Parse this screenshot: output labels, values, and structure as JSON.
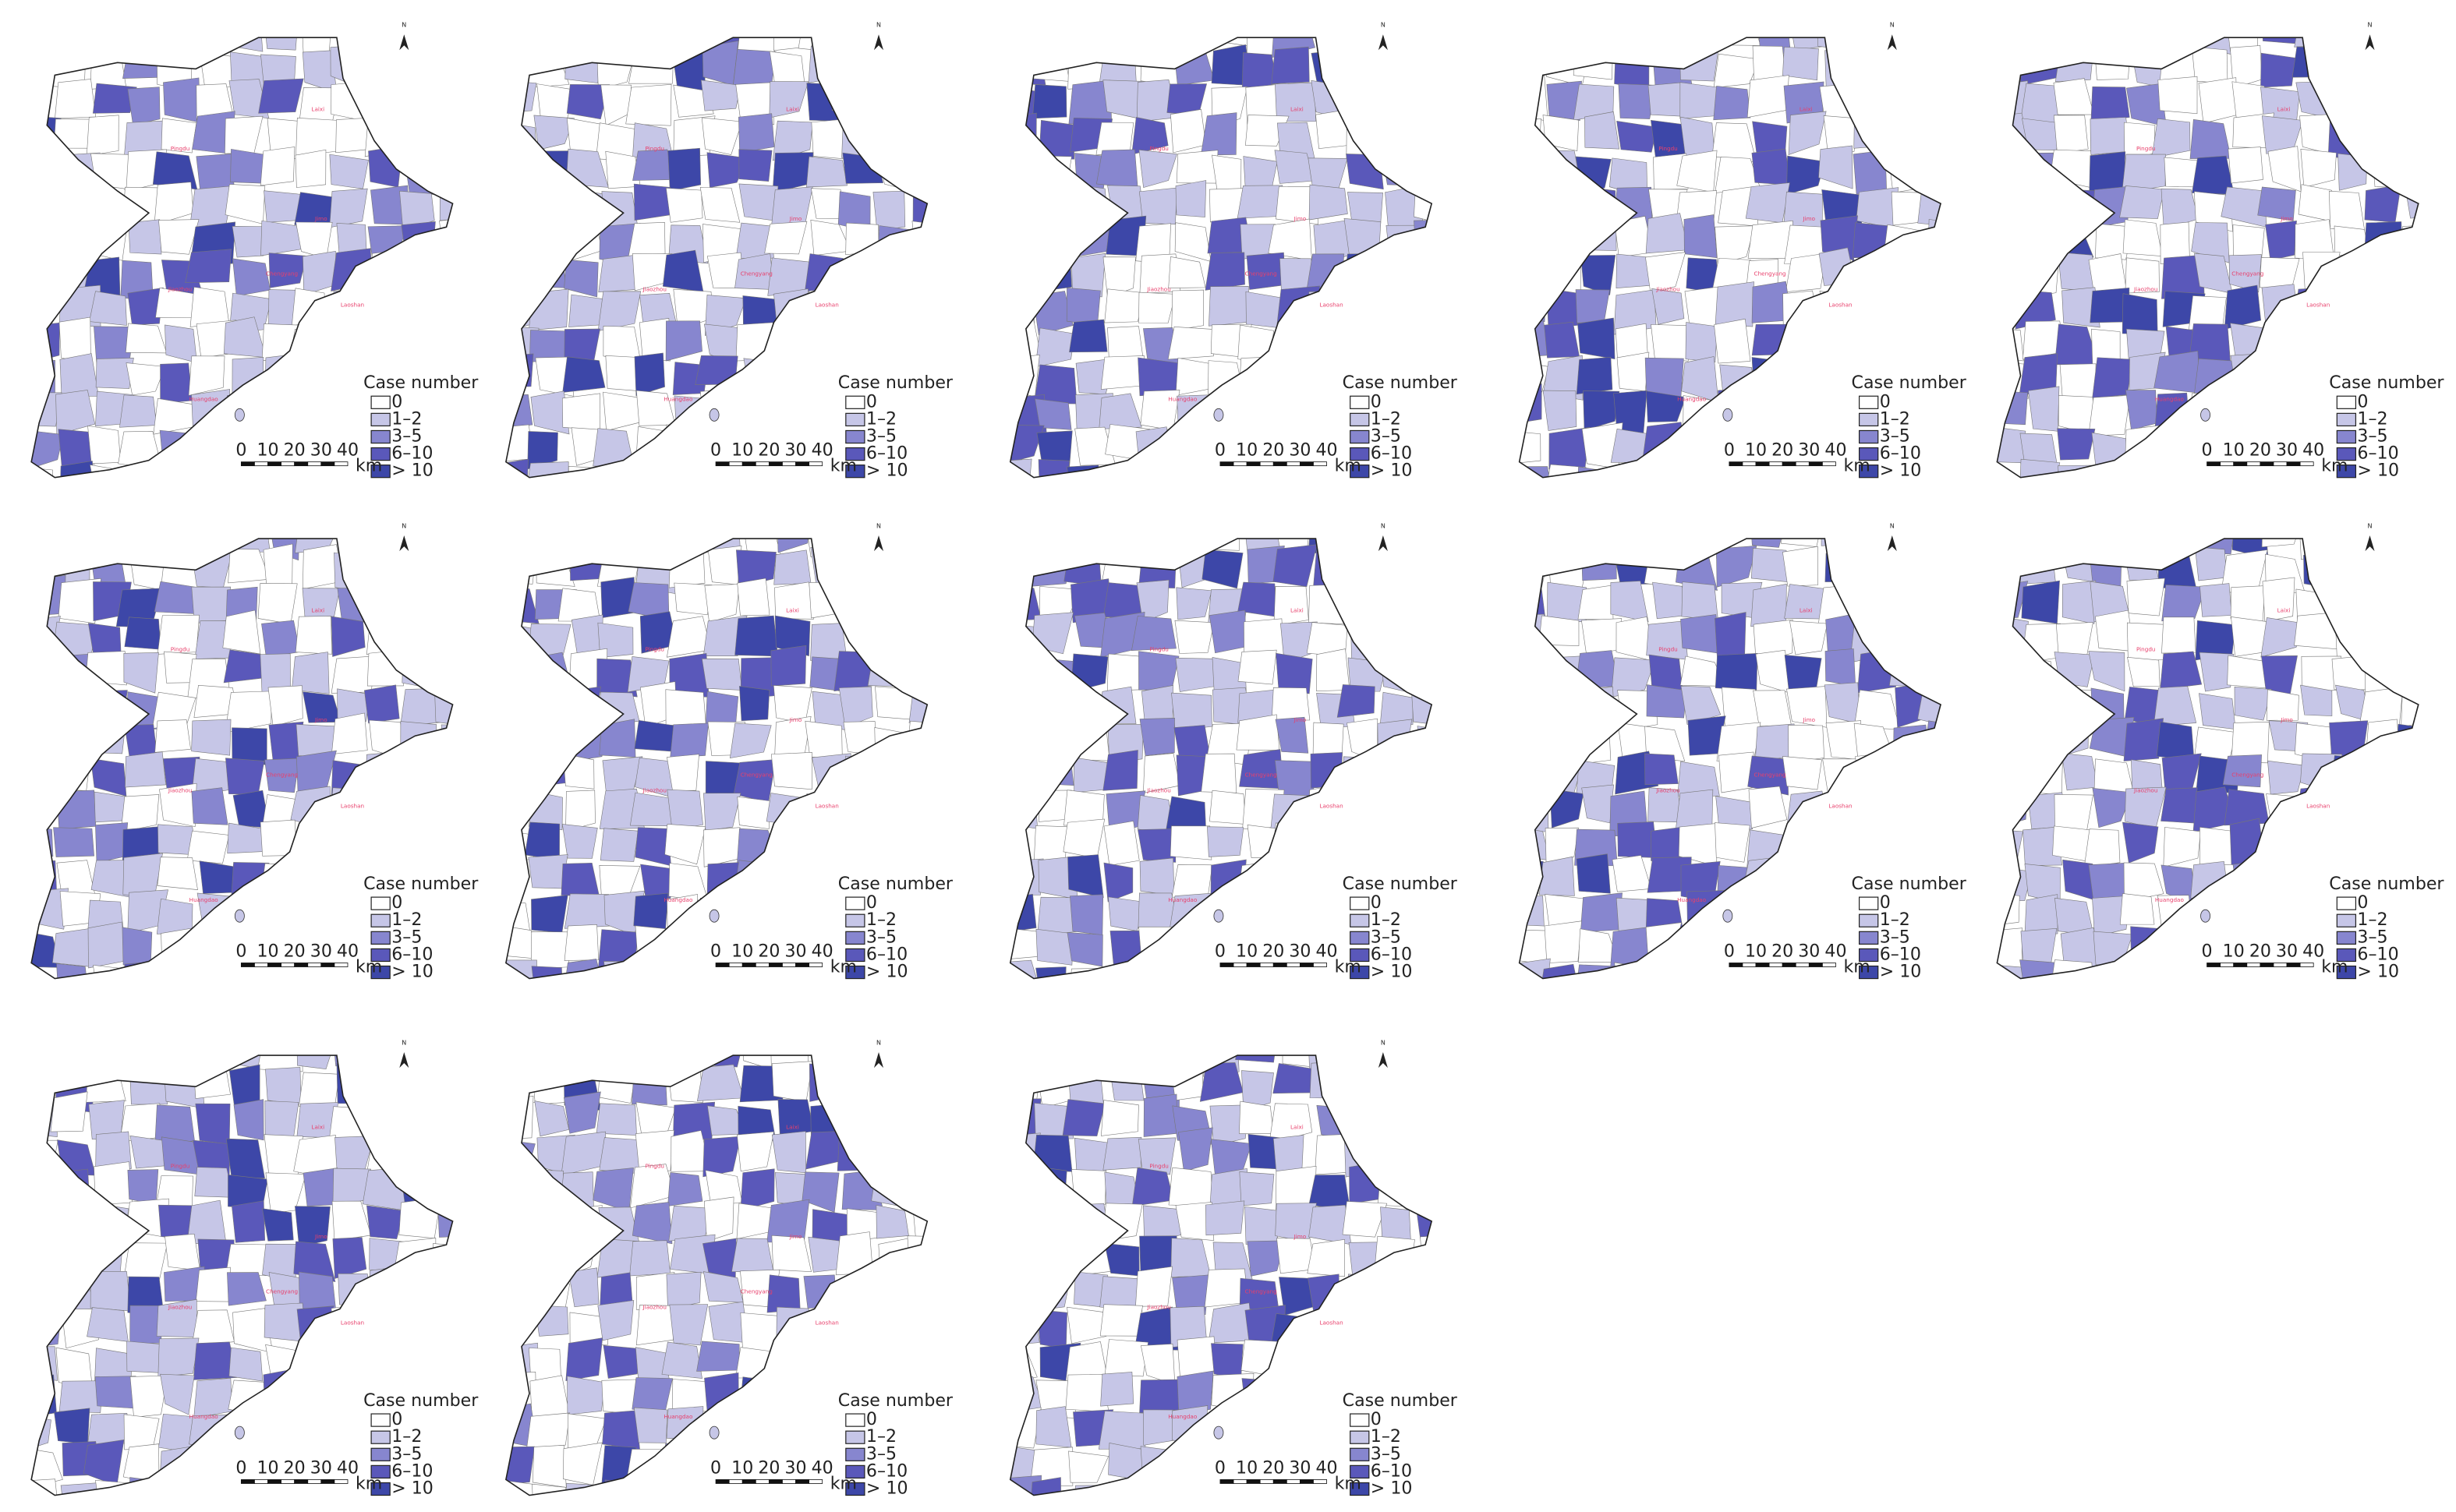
{
  "legend": {
    "title": "Case number",
    "items": [
      {
        "label": "0",
        "color": "#ffffff"
      },
      {
        "label": "1–2",
        "color": "#c6c6e7"
      },
      {
        "label": "3–5",
        "color": "#8786cf"
      },
      {
        "label": "6–10",
        "color": "#5a58ba"
      },
      {
        "label": "> 10",
        "color": "#3d47a8"
      }
    ]
  },
  "scale_bar": {
    "labels": [
      "0",
      "10",
      "20",
      "30",
      "40"
    ],
    "unit": "km"
  },
  "north": "N",
  "places": [
    "Pingdu",
    "Laixi",
    "Jimo",
    "Jiaozhou",
    "Chengyang",
    "Laoshan",
    "Huangdao"
  ]
}
